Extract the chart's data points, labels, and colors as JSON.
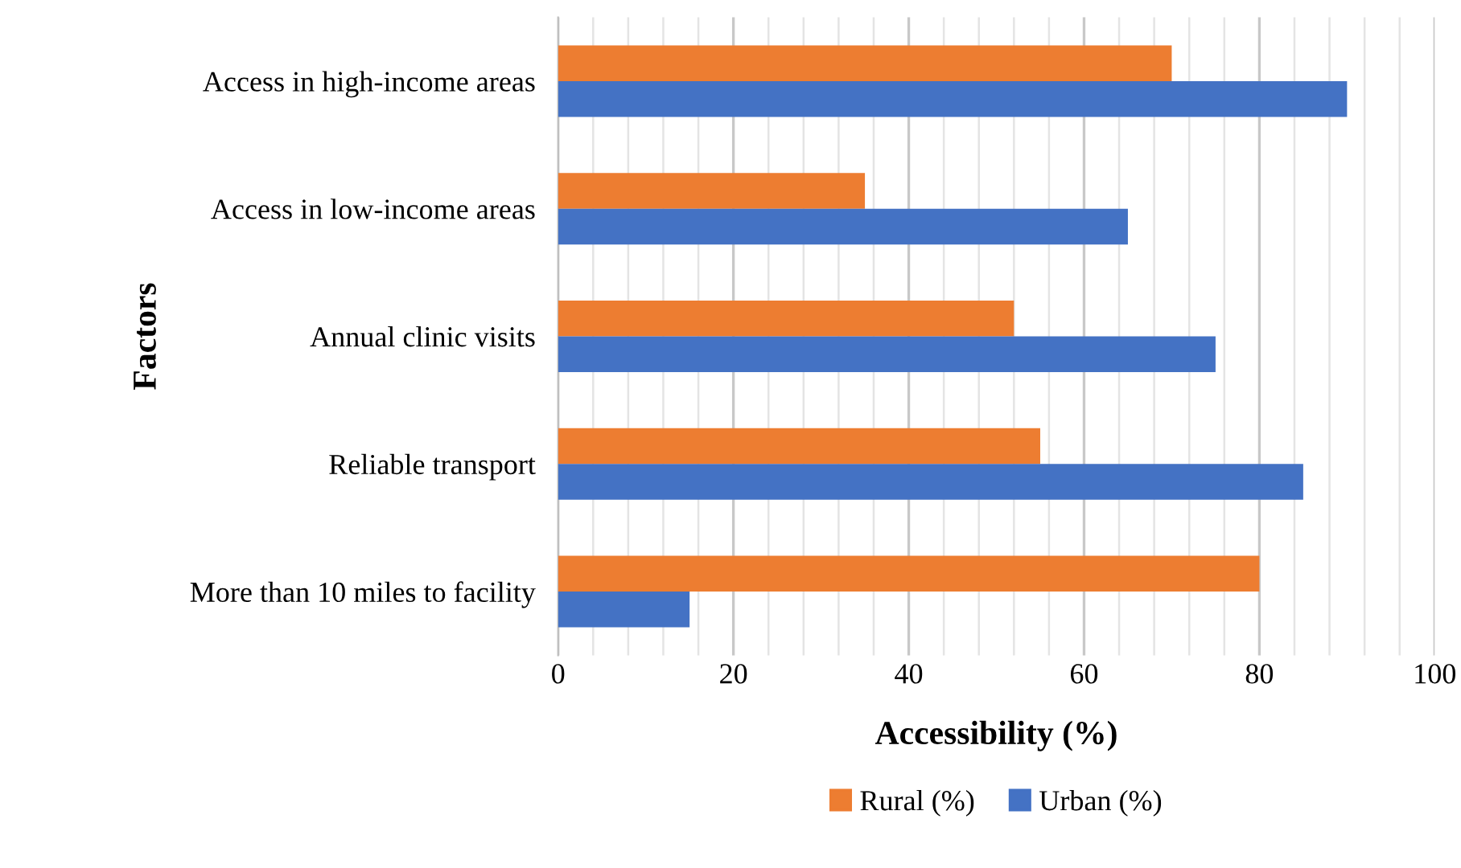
{
  "chart_data": {
    "type": "bar",
    "orientation": "horizontal",
    "xlabel": "Accessibility (%)",
    "ylabel": "Factors",
    "categories": [
      "Access in high-income areas",
      "Access in low-income areas",
      "Annual clinic visits",
      "Reliable transport",
      "More than 10 miles to facility"
    ],
    "series": [
      {
        "name": "Rural (%)",
        "color": "#ed7d31",
        "values": [
          70,
          35,
          52,
          55,
          80
        ]
      },
      {
        "name": "Urban (%)",
        "color": "#4472c4",
        "values": [
          90,
          65,
          75,
          85,
          15
        ]
      }
    ],
    "xlim": [
      0,
      100
    ],
    "xticks": [
      0,
      {
        "value": 4,
        "label": null
      },
      {
        "value": 8,
        "label": null
      },
      {
        "value": 12,
        "label": null
      },
      {
        "value": 16,
        "label": null
      },
      20,
      {
        "value": 24,
        "label": null
      },
      {
        "value": 28,
        "label": null
      },
      {
        "value": 32,
        "label": null
      },
      {
        "value": 36,
        "label": null
      },
      40,
      {
        "value": 44,
        "label": null
      },
      {
        "value": 48,
        "label": null
      },
      {
        "value": 52,
        "label": null
      },
      {
        "value": 56,
        "label": null
      },
      60,
      {
        "value": 64,
        "label": null
      },
      {
        "value": 68,
        "label": null
      },
      {
        "value": 72,
        "label": null
      },
      {
        "value": 76,
        "label": null
      },
      80,
      {
        "value": 84,
        "label": null
      },
      {
        "value": 88,
        "label": null
      },
      {
        "value": 92,
        "label": null
      },
      {
        "value": 96,
        "label": null
      },
      100
    ],
    "grid": "x",
    "legend": "bottom"
  }
}
